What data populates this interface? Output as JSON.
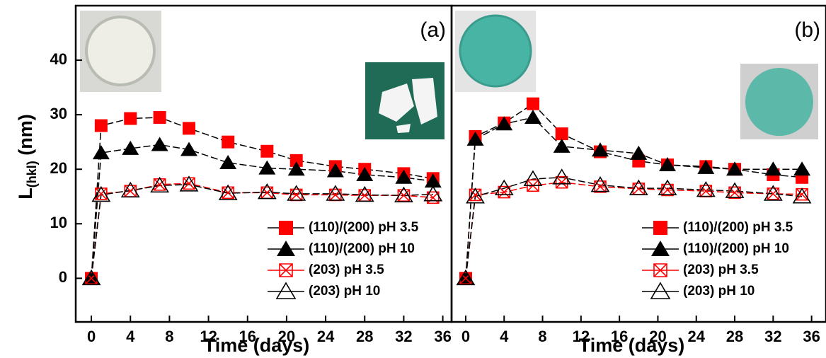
{
  "chart_data": [
    {
      "type": "line",
      "annotation": "(a)",
      "x_label": "Time (days)",
      "y_label": {
        "main": "L",
        "sub": "(hkl)",
        "unit": " (nm)"
      },
      "x": [
        0,
        1,
        4,
        7,
        10,
        14,
        18,
        21,
        25,
        28,
        32,
        35
      ],
      "xlim": [
        -1.6,
        36.9
      ],
      "xticks": [
        0,
        4,
        8,
        12,
        16,
        20,
        24,
        28,
        32,
        36
      ],
      "ylim": [
        -8,
        50
      ],
      "yticks": [
        0,
        10,
        20,
        30,
        40
      ],
      "legend": "lower right",
      "series": [
        {
          "name": "(110)/(200) pH 3.5",
          "color": "#ff0000",
          "line_color": "#000000",
          "marker": "square",
          "values": [
            0,
            28,
            29.3,
            29.5,
            27.5,
            25,
            23.3,
            21.6,
            20.5,
            20,
            19.2,
            18.3
          ]
        },
        {
          "name": "(110)/(200) pH 10",
          "color": "#000000",
          "line_color": "#000000",
          "marker": "triangle",
          "values": [
            0,
            23,
            23.8,
            24.5,
            23.6,
            21.2,
            20.2,
            20,
            19.7,
            19,
            18.5,
            17.8
          ]
        },
        {
          "name": "(203) pH 3.5",
          "color": "#ff0000",
          "line_color": "#ff0000",
          "marker": "square-x",
          "values": [
            0,
            15.5,
            16,
            17.2,
            17.4,
            15.7,
            15.7,
            15.3,
            15.3,
            15.2,
            15.2,
            14.8
          ]
        },
        {
          "name": "(203) pH 10",
          "color": "#000000",
          "line_color": "#000000",
          "marker": "triangle-open",
          "values": [
            0,
            15.3,
            16.1,
            17,
            17.2,
            15.6,
            15.8,
            15.5,
            15.5,
            15.3,
            15.2,
            15.4
          ]
        }
      ]
    },
    {
      "type": "line",
      "annotation": "(b)",
      "x_label": "Time (days)",
      "x": [
        0,
        1,
        4,
        7,
        10,
        14,
        18,
        21,
        25,
        28,
        32,
        35
      ],
      "xlim": [
        -1.47,
        37.5
      ],
      "xticks": [
        0,
        4,
        8,
        12,
        16,
        20,
        24,
        28,
        32,
        36
      ],
      "ylim": [
        -8,
        50
      ],
      "legend": "lower right",
      "series": [
        {
          "name": "(110)/(200) pH 3.5",
          "color": "#ff0000",
          "line_color": "#000000",
          "marker": "square",
          "values": [
            0,
            26,
            28.5,
            32,
            26.5,
            23.2,
            21.5,
            20.8,
            20.5,
            20,
            19,
            18.5
          ]
        },
        {
          "name": "(110)/(200) pH 10",
          "color": "#000000",
          "line_color": "#000000",
          "marker": "triangle",
          "values": [
            0,
            25.5,
            28.3,
            29.5,
            24.2,
            23.5,
            22.9,
            20.8,
            20.3,
            20,
            20,
            20
          ]
        },
        {
          "name": "(203) pH 3.5",
          "color": "#ff0000",
          "line_color": "#ff0000",
          "marker": "square-x",
          "values": [
            0,
            15.3,
            15.8,
            17,
            17.6,
            16.8,
            16.4,
            16.2,
            16,
            15.7,
            15.5,
            15.4
          ]
        },
        {
          "name": "(203) pH 10",
          "color": "#000000",
          "line_color": "#000000",
          "marker": "triangle-open",
          "values": [
            0,
            15,
            16.5,
            18.2,
            18.5,
            17.1,
            16.5,
            16.5,
            16.2,
            16,
            15.5,
            15
          ]
        }
      ]
    }
  ]
}
